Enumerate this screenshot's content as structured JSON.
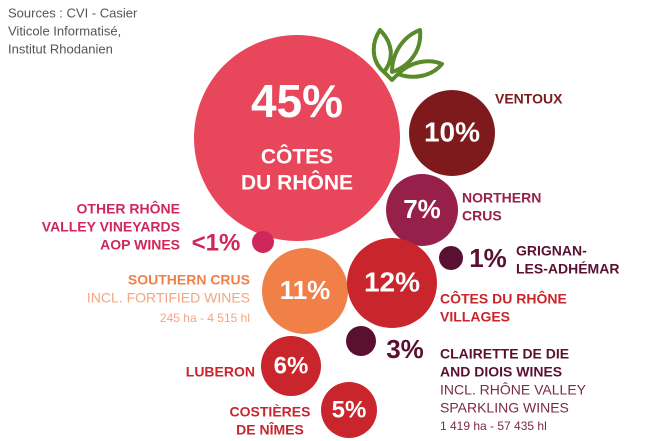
{
  "chart_data": {
    "type": "bubble",
    "source": [
      "Sources : CVI - Casier",
      "Viticole Informatisé,",
      "Institut Rhodanien"
    ],
    "items": [
      {
        "label": [
          "CÔTES",
          "DU RHÔNE"
        ],
        "value": 45,
        "value_label": "45%",
        "color": "#e8465a"
      },
      {
        "label": [
          "VENTOUX"
        ],
        "value": 10,
        "value_label": "10%",
        "color": "#7e1a1c"
      },
      {
        "label": [
          "NORTHERN",
          "CRUS"
        ],
        "value": 7,
        "value_label": "7%",
        "color": "#97204a"
      },
      {
        "label": [
          "OTHER RHÔNE",
          "VALLEY VINEYARDS",
          "AOP WINES"
        ],
        "value": 0.5,
        "value_label": "<1%",
        "color": "#d0275a"
      },
      {
        "label": [
          "GRIGNAN-",
          "LES-ADHÉMAR"
        ],
        "value": 1,
        "value_label": "1%",
        "color": "#5a1031"
      },
      {
        "label": [
          "SOUTHERN CRUS"
        ],
        "details": [
          "INCL. FORTIFIED WINES",
          "245 ha - 4 515 hl"
        ],
        "value": 11,
        "value_label": "11%",
        "color": "#f08048"
      },
      {
        "label": [
          "CÔTES DU RHÔNE",
          "VILLAGES"
        ],
        "value": 12,
        "value_label": "12%",
        "color": "#c9252c"
      },
      {
        "label": [
          "CLAIRETTE DE DIE",
          "AND DIOIS WINES"
        ],
        "details": [
          "INCL. RHÔNE VALLEY",
          "SPARKLING WINES",
          "1 419 ha - 57 435 hl"
        ],
        "value": 3,
        "value_label": "3%",
        "color": "#5a1031"
      },
      {
        "label": [
          "LUBERON"
        ],
        "value": 6,
        "value_label": "6%",
        "color": "#c9252c"
      },
      {
        "label": [
          "COSTIÈRES",
          "DE NÎMES"
        ],
        "value": 5,
        "value_label": "5%",
        "color": "#c9252c"
      }
    ]
  }
}
